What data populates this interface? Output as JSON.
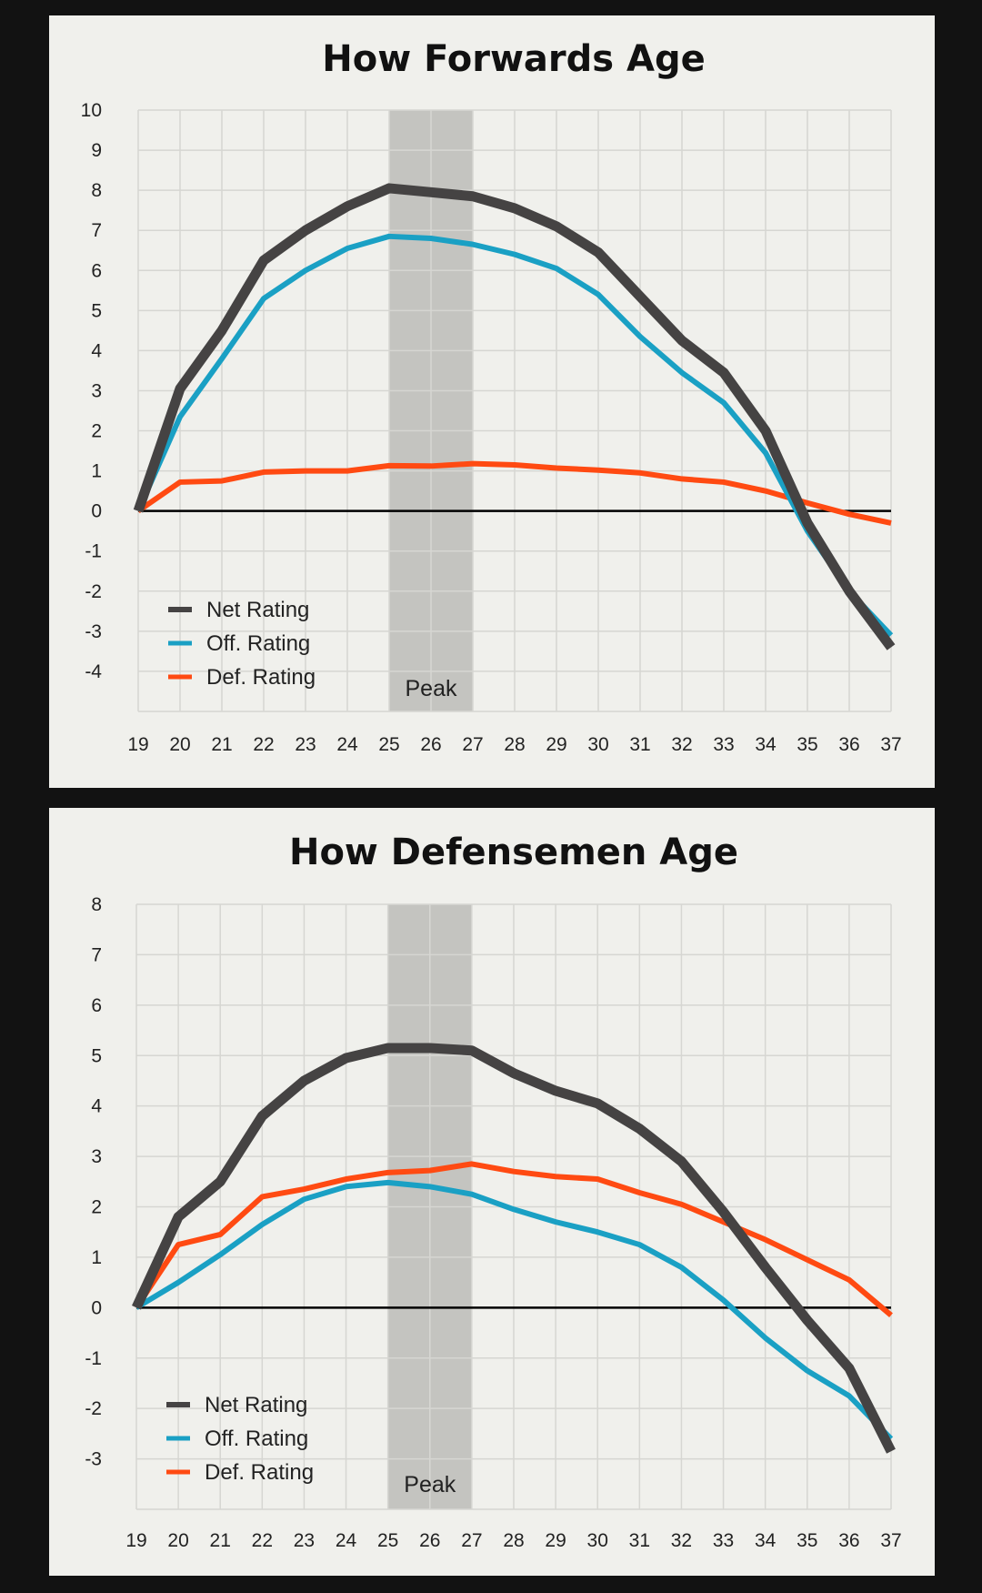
{
  "chart_data": [
    {
      "type": "line",
      "title": "How Forwards Age",
      "xlabel": "",
      "ylabel": "",
      "x": [
        19,
        20,
        21,
        22,
        23,
        24,
        25,
        26,
        27,
        28,
        29,
        30,
        31,
        32,
        33,
        34,
        35,
        36,
        37
      ],
      "ylim": [
        -5,
        10
      ],
      "yticks": [
        10,
        9,
        8,
        7,
        6,
        5,
        4,
        3,
        2,
        1,
        0,
        -1,
        -2,
        -3,
        -4
      ],
      "grid": true,
      "legend_position": "bottom-left",
      "annotation": {
        "label": "Peak",
        "x_range": [
          25,
          27
        ]
      },
      "series": [
        {
          "name": "Net Rating",
          "color": "#454343",
          "values": [
            0,
            3.05,
            4.5,
            6.25,
            7.0,
            7.6,
            8.05,
            7.95,
            7.85,
            7.55,
            7.1,
            6.45,
            5.35,
            4.25,
            3.45,
            2.0,
            -0.3,
            -2.0,
            -3.4
          ]
        },
        {
          "name": "Off. Rating",
          "color": "#1aa0c4",
          "values": [
            0,
            2.35,
            3.8,
            5.3,
            6.0,
            6.55,
            6.85,
            6.8,
            6.65,
            6.4,
            6.05,
            5.4,
            4.35,
            3.45,
            2.7,
            1.45,
            -0.5,
            -2.0,
            -3.1
          ]
        },
        {
          "name": "Def. Rating",
          "color": "#ff4a12",
          "values": [
            0,
            0.72,
            0.75,
            0.97,
            1.0,
            1.0,
            1.13,
            1.12,
            1.18,
            1.15,
            1.07,
            1.02,
            0.95,
            0.8,
            0.72,
            0.5,
            0.2,
            -0.08,
            -0.3
          ]
        }
      ]
    },
    {
      "type": "line",
      "title": "How Defensemen Age",
      "xlabel": "",
      "ylabel": "",
      "x": [
        19,
        20,
        21,
        22,
        23,
        24,
        25,
        26,
        27,
        28,
        29,
        30,
        31,
        32,
        33,
        34,
        35,
        36,
        37
      ],
      "ylim": [
        -4,
        8
      ],
      "yticks": [
        8,
        7,
        6,
        5,
        4,
        3,
        2,
        1,
        0,
        -1,
        -2,
        -3
      ],
      "grid": true,
      "legend_position": "bottom-left",
      "annotation": {
        "label": "Peak",
        "x_range": [
          25,
          27
        ]
      },
      "series": [
        {
          "name": "Net Rating",
          "color": "#454343",
          "values": [
            0,
            1.8,
            2.5,
            3.8,
            4.5,
            4.95,
            5.15,
            5.15,
            5.1,
            4.65,
            4.3,
            4.05,
            3.55,
            2.9,
            1.9,
            0.8,
            -0.25,
            -1.2,
            -2.85
          ]
        },
        {
          "name": "Off. Rating",
          "color": "#1aa0c4",
          "values": [
            0,
            0.5,
            1.05,
            1.65,
            2.15,
            2.4,
            2.48,
            2.4,
            2.25,
            1.95,
            1.7,
            1.5,
            1.25,
            0.8,
            0.15,
            -0.6,
            -1.25,
            -1.75,
            -2.6
          ]
        },
        {
          "name": "Def. Rating",
          "color": "#ff4a12",
          "values": [
            0,
            1.25,
            1.45,
            2.2,
            2.35,
            2.55,
            2.68,
            2.72,
            2.85,
            2.7,
            2.6,
            2.55,
            2.28,
            2.05,
            1.7,
            1.35,
            0.95,
            0.55,
            -0.15
          ]
        }
      ]
    }
  ]
}
